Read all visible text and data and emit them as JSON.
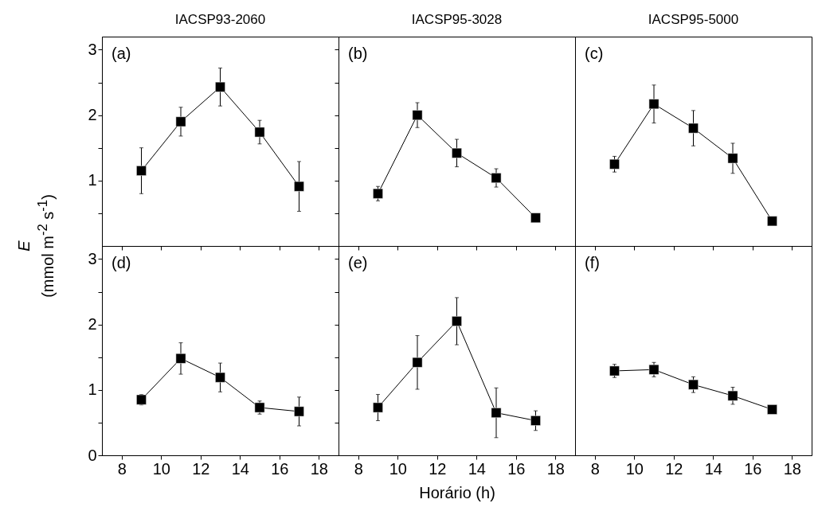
{
  "chart_data": [
    {
      "type": "line",
      "title": "IACSP93-2060",
      "ylabel": "E\n(mmol m$^{-2}$ s$^{-1}$)",
      "annotations": [
        "(a)"
      ],
      "x": [
        9,
        11,
        13,
        15,
        17
      ],
      "values": [
        1.15,
        1.9,
        2.43,
        1.74,
        0.91
      ],
      "errors": [
        0.35,
        0.22,
        0.29,
        0.18,
        0.38
      ],
      "color": "#000000",
      "marker": "square",
      "xlim": [
        7,
        19
      ],
      "xticks": [
        8,
        10,
        12,
        14,
        16,
        18
      ],
      "ylim": [
        0,
        3.2
      ],
      "yticks": [
        {
          "value": 0.5,
          "label": null
        },
        1,
        {
          "value": 1.5,
          "label": null
        },
        2,
        {
          "value": 2.5,
          "label": null
        },
        3
      ],
      "tick_labels": "y"
    },
    {
      "type": "line",
      "title": "IACSP95-3028",
      "annotations": [
        "(b)"
      ],
      "x": [
        9,
        11,
        13,
        15,
        17
      ],
      "values": [
        0.8,
        2.0,
        1.42,
        1.04,
        0.43
      ],
      "errors": [
        0.11,
        0.19,
        0.21,
        0.14,
        null
      ],
      "color": "#000000",
      "marker": "square",
      "xlim": [
        7,
        19
      ],
      "xticks": [
        8,
        10,
        12,
        14,
        16,
        18
      ],
      "ylim": [
        0,
        3.2
      ],
      "yticks": [
        {
          "value": 0.5,
          "label": null
        },
        {
          "value": 1,
          "label": null
        },
        {
          "value": 1.5,
          "label": null
        },
        {
          "value": 2,
          "label": null
        },
        {
          "value": 2.5,
          "label": null
        },
        {
          "value": 3,
          "label": null
        }
      ],
      "tick_labels": false
    },
    {
      "type": "line",
      "title": "IACSP95-5000",
      "annotations": [
        "(c)"
      ],
      "x": [
        9,
        11,
        13,
        15,
        17
      ],
      "values": [
        1.25,
        2.17,
        1.8,
        1.34,
        0.38
      ],
      "errors": [
        0.12,
        0.29,
        0.27,
        0.23,
        null
      ],
      "color": "#000000",
      "marker": "square",
      "xlim": [
        7,
        19
      ],
      "xticks": [
        8,
        10,
        12,
        14,
        16,
        18
      ],
      "ylim": [
        0,
        3.2
      ],
      "tick_labels": false
    },
    {
      "type": "line",
      "annotations": [
        "(d)"
      ],
      "x": [
        9,
        11,
        13,
        15,
        17
      ],
      "values": [
        0.85,
        1.48,
        1.19,
        0.73,
        0.67
      ],
      "errors": [
        0.08,
        0.24,
        0.22,
        0.1,
        0.22
      ],
      "color": "#000000",
      "marker": "square",
      "xlim": [
        7,
        19
      ],
      "xticks": [
        8,
        10,
        12,
        14,
        16,
        18
      ],
      "ylim": [
        0,
        3.2
      ],
      "yticks": [
        0,
        {
          "value": 0.5,
          "label": null
        },
        1,
        {
          "value": 1.5,
          "label": null
        },
        2,
        {
          "value": 2.5,
          "label": null
        },
        3
      ]
    },
    {
      "type": "line",
      "xlabel": "Horário (h)",
      "annotations": [
        "(e)"
      ],
      "x": [
        9,
        11,
        13,
        15,
        17
      ],
      "values": [
        0.73,
        1.42,
        2.05,
        0.65,
        0.53
      ],
      "errors": [
        0.2,
        0.41,
        0.36,
        0.38,
        0.15
      ],
      "color": "#000000",
      "marker": "square",
      "xlim": [
        7,
        19
      ],
      "xticks": [
        8,
        10,
        12,
        14,
        16,
        18
      ],
      "ylim": [
        0,
        3.2
      ],
      "yticks": [
        {
          "value": 0,
          "label": null
        },
        {
          "value": 0.5,
          "label": null
        },
        {
          "value": 1,
          "label": null
        },
        {
          "value": 1.5,
          "label": null
        },
        {
          "value": 2,
          "label": null
        },
        {
          "value": 2.5,
          "label": null
        },
        {
          "value": 3,
          "label": null
        }
      ],
      "tick_labels": "x"
    },
    {
      "type": "line",
      "annotations": [
        "(f)"
      ],
      "x": [
        9,
        11,
        13,
        15,
        17
      ],
      "values": [
        1.29,
        1.31,
        1.08,
        0.91,
        0.7
      ],
      "errors": [
        0.1,
        0.11,
        0.12,
        0.13,
        null
      ],
      "color": "#000000",
      "marker": "square",
      "xlim": [
        7,
        19
      ],
      "xticks": [
        8,
        10,
        12,
        14,
        16,
        18
      ],
      "ylim": [
        0,
        3.2
      ],
      "tick_labels": "x"
    }
  ]
}
